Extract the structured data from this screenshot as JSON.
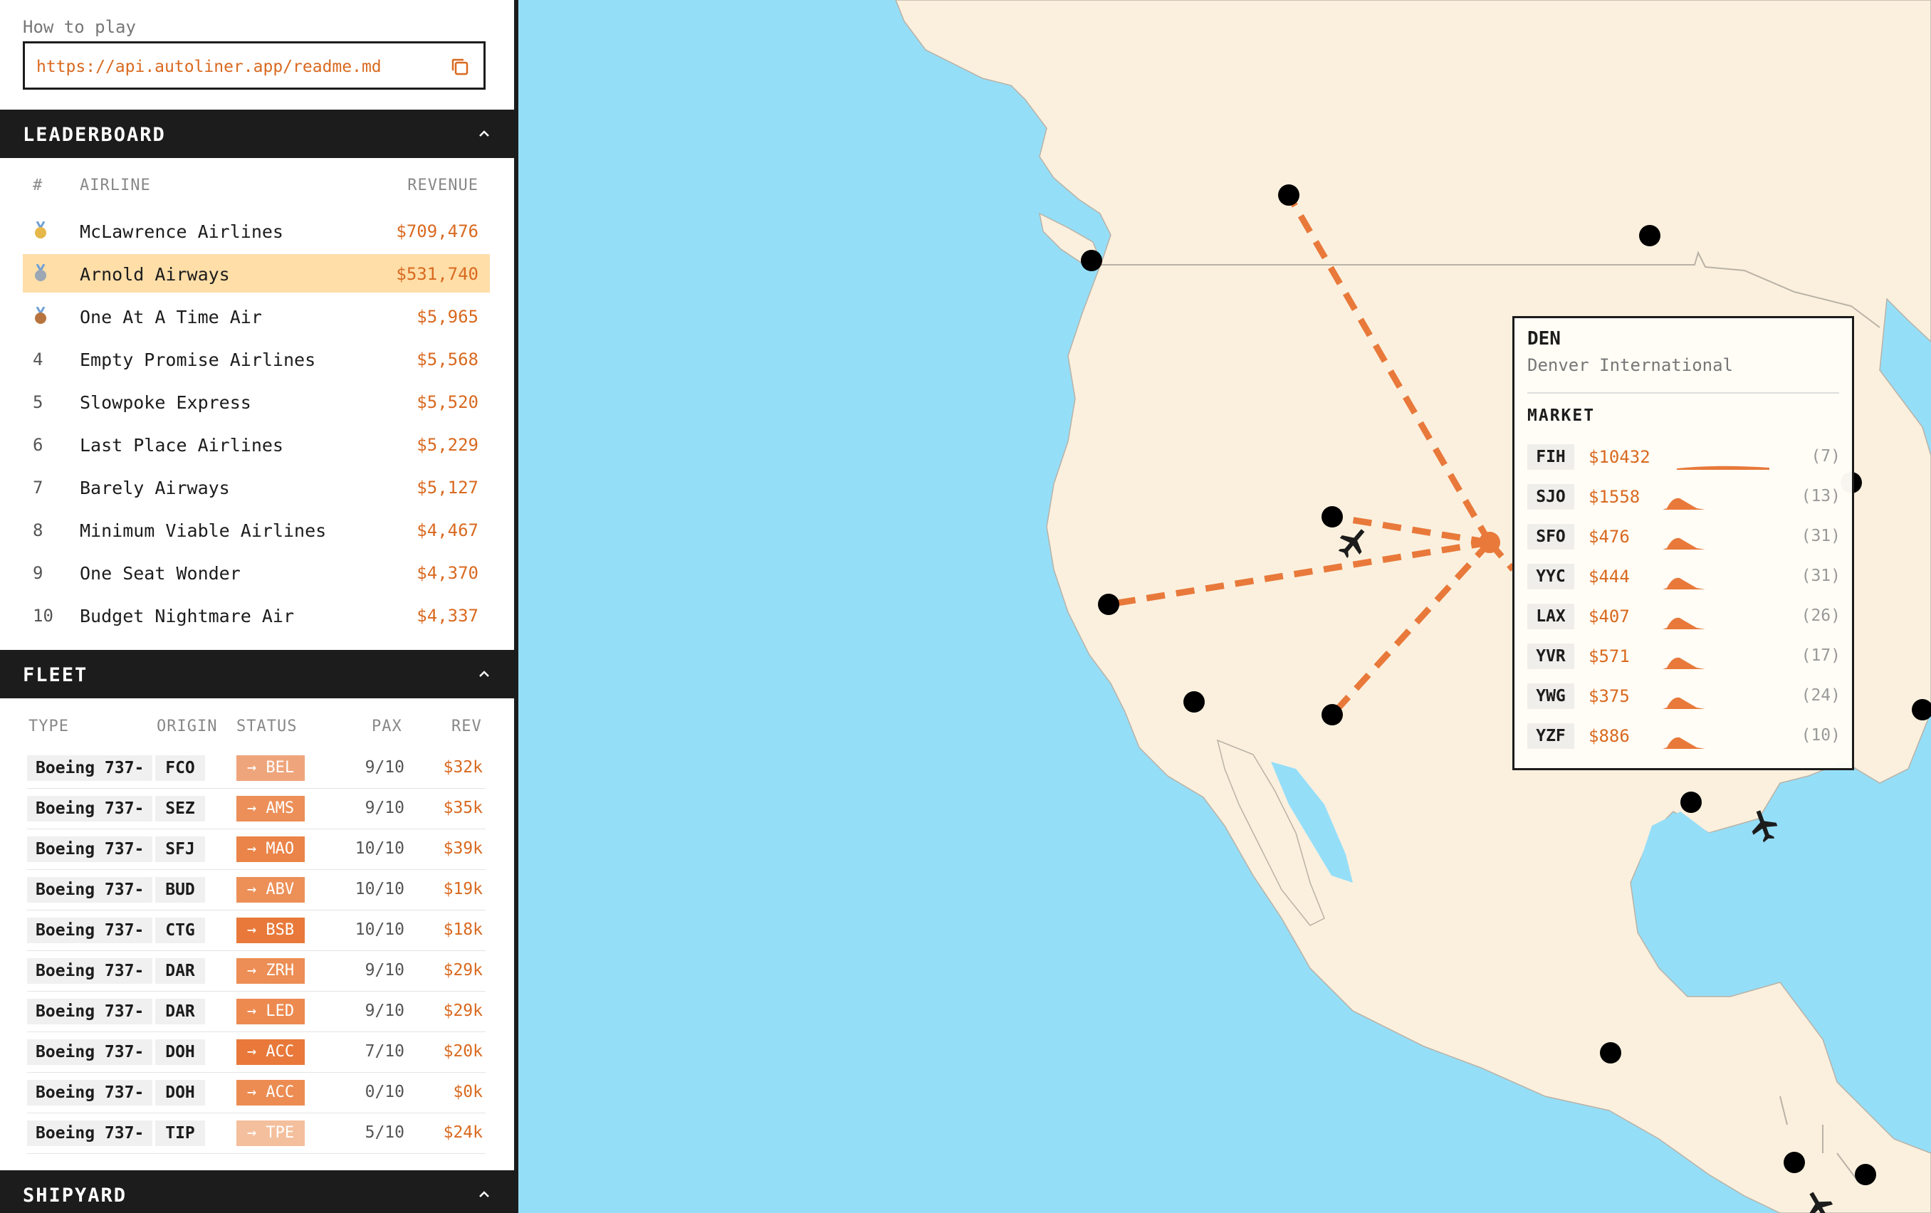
{
  "howto": {
    "label": "How to play",
    "url": "https://api.autoliner.app/readme.md",
    "copy_icon": "copy-icon"
  },
  "leaderboard": {
    "title": "LEADERBOARD",
    "col_rank": "#",
    "col_airline": "AIRLINE",
    "col_revenue": "REVENUE",
    "rows": [
      {
        "rank": "",
        "medal": "gold",
        "name": "McLawrence Airlines",
        "revenue": "$709,476"
      },
      {
        "rank": "",
        "medal": "silver",
        "name": "Arnold Airways",
        "revenue": "$531,740",
        "highlight": true
      },
      {
        "rank": "",
        "medal": "bronze",
        "name": "One At A Time Air",
        "revenue": "$5,965"
      },
      {
        "rank": "4",
        "name": "Empty Promise Airlines",
        "revenue": "$5,568"
      },
      {
        "rank": "5",
        "name": "Slowpoke Express",
        "revenue": "$5,520"
      },
      {
        "rank": "6",
        "name": "Last Place Airlines",
        "revenue": "$5,229"
      },
      {
        "rank": "7",
        "name": "Barely Airways",
        "revenue": "$5,127"
      },
      {
        "rank": "8",
        "name": "Minimum Viable Airlines",
        "revenue": "$4,467"
      },
      {
        "rank": "9",
        "name": "One Seat Wonder",
        "revenue": "$4,370"
      },
      {
        "rank": "10",
        "name": "Budget Nightmare Air",
        "revenue": "$4,337"
      }
    ]
  },
  "fleet": {
    "title": "FLEET",
    "col_type": "TYPE",
    "col_origin": "ORIGIN",
    "col_status": "STATUS",
    "col_pax": "PAX",
    "col_rev": "REV",
    "rows": [
      {
        "type": "Boeing 737-",
        "origin": "FCO",
        "status": "→ BEL",
        "pax": "9/10",
        "rev": "$32k",
        "status_color": "#EFA57B"
      },
      {
        "type": "Boeing 737-",
        "origin": "SEZ",
        "status": "→ AMS",
        "pax": "9/10",
        "rev": "$35k",
        "status_color": "#EC8F58"
      },
      {
        "type": "Boeing 737-",
        "origin": "SFJ",
        "status": "→ MAO",
        "pax": "10/10",
        "rev": "$39k",
        "status_color": "#EA8448"
      },
      {
        "type": "Boeing 737-",
        "origin": "BUD",
        "status": "→ ABV",
        "pax": "10/10",
        "rev": "$19k",
        "status_color": "#EC9058"
      },
      {
        "type": "Boeing 737-",
        "origin": "CTG",
        "status": "→ BSB",
        "pax": "10/10",
        "rev": "$18k",
        "status_color": "#E8793A"
      },
      {
        "type": "Boeing 737-",
        "origin": "DAR",
        "status": "→ ZRH",
        "pax": "9/10",
        "rev": "$29k",
        "status_color": "#EC8E55"
      },
      {
        "type": "Boeing 737-",
        "origin": "DAR",
        "status": "→ LED",
        "pax": "9/10",
        "rev": "$29k",
        "status_color": "#EC8A50"
      },
      {
        "type": "Boeing 737-",
        "origin": "DOH",
        "status": "→ ACC",
        "pax": "7/10",
        "rev": "$20k",
        "status_color": "#E8793A"
      },
      {
        "type": "Boeing 737-",
        "origin": "DOH",
        "status": "→ ACC",
        "pax": "0/10",
        "rev": "$0k",
        "status_color": "#EC8C52"
      },
      {
        "type": "Boeing 737-",
        "origin": "TIP",
        "status": "→ TPE",
        "pax": "5/10",
        "rev": "$24k",
        "status_color": "#F4BF9C"
      }
    ]
  },
  "shipyard": {
    "title": "SHIPYARD"
  },
  "airport": {
    "code": "DEN",
    "name": "Denver International",
    "market_title": "MARKET",
    "market": [
      {
        "code": "FIH",
        "price": "$10432",
        "count": "(7)"
      },
      {
        "code": "SJO",
        "price": "$1558",
        "count": "(13)"
      },
      {
        "code": "SFO",
        "price": "$476",
        "count": "(31)"
      },
      {
        "code": "YYC",
        "price": "$444",
        "count": "(31)"
      },
      {
        "code": "LAX",
        "price": "$407",
        "count": "(26)"
      },
      {
        "code": "YVR",
        "price": "$571",
        "count": "(17)"
      },
      {
        "code": "YWG",
        "price": "$375",
        "count": "(24)"
      },
      {
        "code": "YZF",
        "price": "$886",
        "count": "(10)"
      }
    ]
  },
  "colors": {
    "accent": "#E8793A",
    "ocean": "#95DEF8",
    "land": "#FBF0DE",
    "highlight_row": "#FFDEA8",
    "dark": "#1C1C1C"
  }
}
